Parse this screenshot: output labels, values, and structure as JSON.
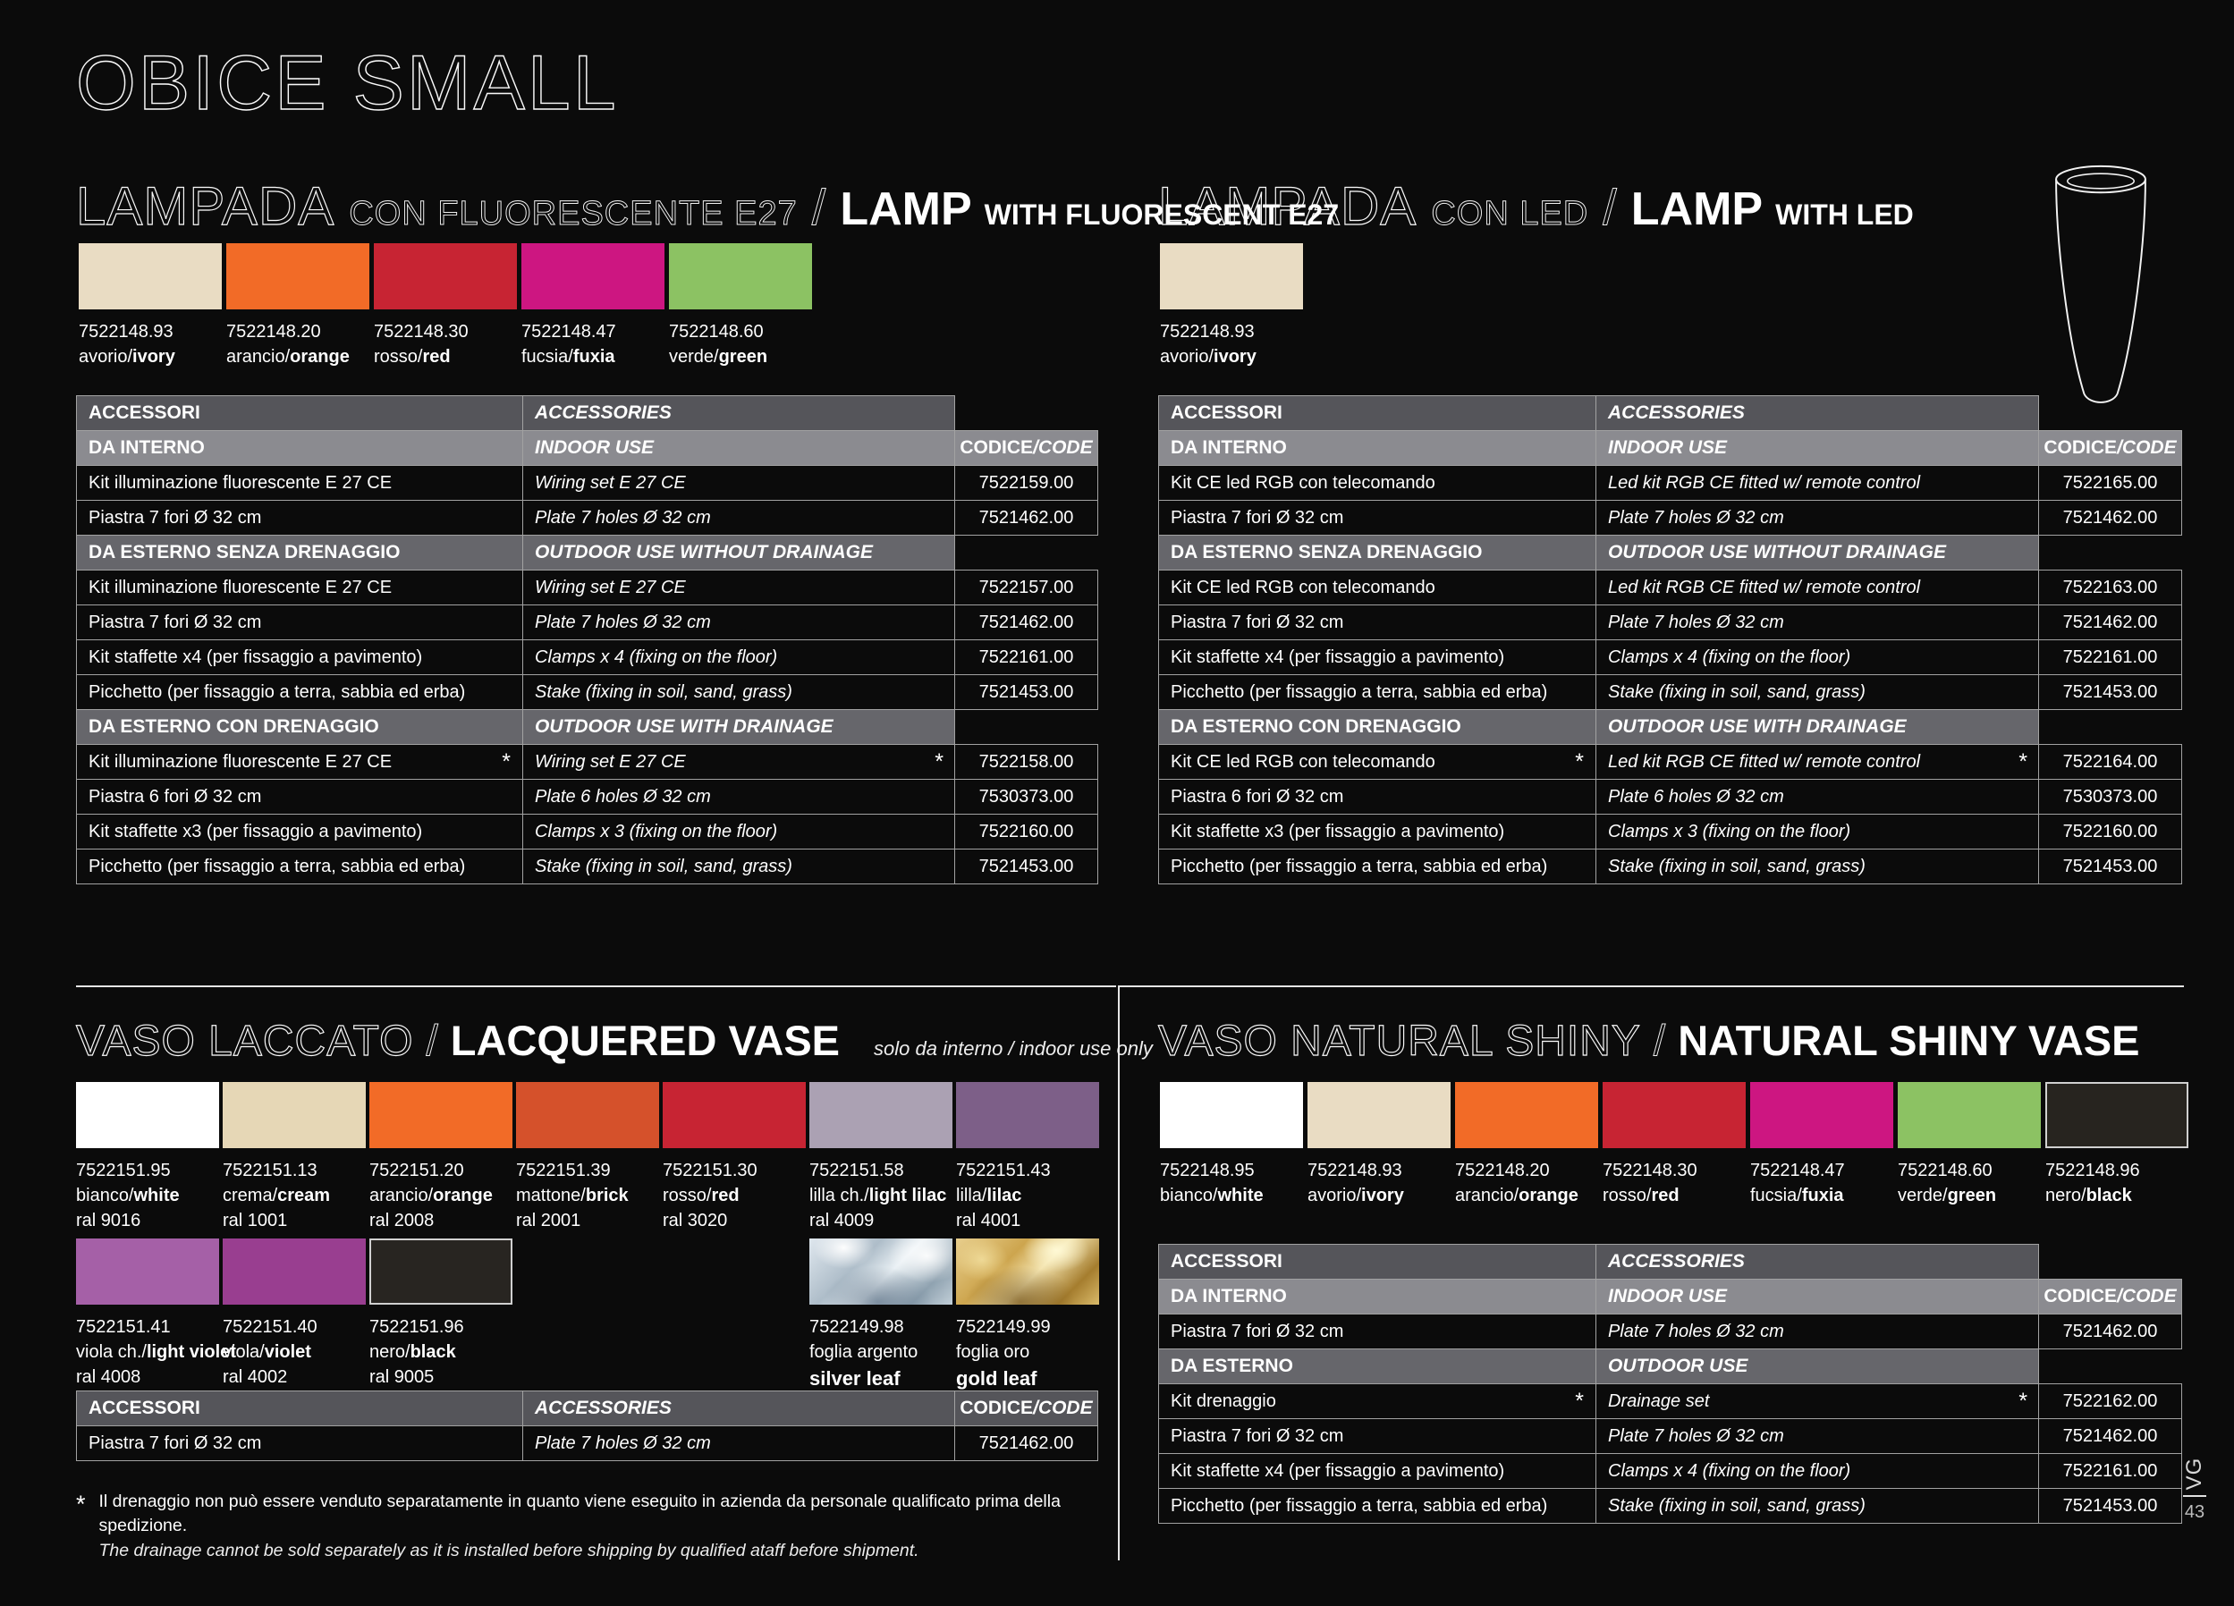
{
  "page": {
    "title": "OBICE SMALL"
  },
  "footer": {
    "brand": "VG",
    "page_number": "43"
  },
  "labels": {
    "codice": "CODICE",
    "code_slash": "/CODE"
  },
  "icons": {
    "product_drawing": "vase-outline-icon"
  },
  "footnote": {
    "symbol": "*",
    "it": "Il drenaggio non può essere venduto separatamente in quanto viene eseguito in azienda da personale qualificato prima della spedizione.",
    "en": "The drainage cannot be sold separately as it is installed before shipping by qualified ataff before shipment."
  },
  "sections": {
    "lamp_fluorescent": {
      "title_it": "LAMPADA",
      "subtitle_it": "CON FLUORESCENTE E27",
      "slash": "/",
      "title_en": "LAMP",
      "subtitle_en": "WITH FLUORESCENT E27",
      "swatches": [
        {
          "code": "7522148.93",
          "it": "avorio",
          "en": "ivory",
          "color": "#e9dcc3"
        },
        {
          "code": "7522148.20",
          "it": "arancio",
          "en": "orange",
          "color": "#f26b27"
        },
        {
          "code": "7522148.30",
          "it": "rosso",
          "en": "red",
          "color": "#c72433"
        },
        {
          "code": "7522148.47",
          "it": "fucsia",
          "en": "fuxia",
          "color": "#cd1681"
        },
        {
          "code": "7522148.60",
          "it": "verde",
          "en": "green",
          "color": "#8cc263"
        }
      ],
      "table": [
        {
          "type": "header",
          "it": "ACCESSORI",
          "en": "ACCESSORIES"
        },
        {
          "type": "subheader",
          "it": "DA INTERNO",
          "en": "INDOOR USE",
          "code_label": true
        },
        {
          "type": "item",
          "it": "Kit illuminazione fluorescente E 27 CE",
          "en": "Wiring set  E 27 CE",
          "code": "7522159.00"
        },
        {
          "type": "item",
          "it": "Piastra 7 fori Ø 32 cm",
          "en": "Plate 7 holes Ø 32 cm",
          "code": "7521462.00"
        },
        {
          "type": "section",
          "it": "DA ESTERNO SENZA DRENAGGIO",
          "en": "OUTDOOR USE WITHOUT DRAINAGE"
        },
        {
          "type": "item",
          "it": "Kit illuminazione fluorescente E 27 CE",
          "en": "Wiring set  E 27 CE",
          "code": "7522157.00"
        },
        {
          "type": "item",
          "it": "Piastra 7 fori Ø 32 cm",
          "en": "Plate 7 holes Ø 32 cm",
          "code": "7521462.00"
        },
        {
          "type": "item",
          "it": "Kit staffette x4 (per fissaggio a pavimento)",
          "en": "Clamps x 4 (fixing on the floor)",
          "code": "7522161.00"
        },
        {
          "type": "item",
          "it": "Picchetto (per fissaggio a terra, sabbia ed erba)",
          "en": "Stake (fixing in soil, sand, grass)",
          "code": "7521453.00"
        },
        {
          "type": "section",
          "it": "DA ESTERNO CON DRENAGGIO",
          "en": "OUTDOOR USE WITH DRAINAGE"
        },
        {
          "type": "item",
          "it": "Kit illuminazione fluorescente E 27 CE",
          "en": "Wiring set  E 27 CE",
          "code": "7522158.00",
          "star": true
        },
        {
          "type": "item",
          "it": "Piastra 6 fori Ø 32 cm",
          "en": "Plate 6 holes Ø 32 cm",
          "code": "7530373.00"
        },
        {
          "type": "item",
          "it": "Kit staffette x3 (per fissaggio a pavimento)",
          "en": "Clamps x 3 (fixing on the floor)",
          "code": "7522160.00"
        },
        {
          "type": "item",
          "it": "Picchetto (per fissaggio a terra, sabbia ed erba)",
          "en": "Stake (fixing in soil, sand, grass)",
          "code": "7521453.00"
        }
      ]
    },
    "lamp_led": {
      "title_it": "LAMPADA",
      "subtitle_it": "CON LED",
      "slash": "/",
      "title_en": "LAMP",
      "subtitle_en": "WITH LED",
      "swatches": [
        {
          "code": "7522148.93",
          "it": "avorio",
          "en": "ivory",
          "color": "#e9dcc3"
        }
      ],
      "table": [
        {
          "type": "header",
          "it": "ACCESSORI",
          "en": "ACCESSORIES"
        },
        {
          "type": "subheader",
          "it": "DA INTERNO",
          "en": "INDOOR USE",
          "code_label": true
        },
        {
          "type": "item",
          "it": "Kit CE led RGB con telecomando",
          "en": "Led kit RGB CE fitted w/ remote control",
          "code": "7522165.00"
        },
        {
          "type": "item",
          "it": "Piastra 7 fori Ø 32 cm",
          "en": "Plate 7 holes Ø 32 cm",
          "code": "7521462.00"
        },
        {
          "type": "section",
          "it": "DA ESTERNO SENZA DRENAGGIO",
          "en": "OUTDOOR USE WITHOUT DRAINAGE"
        },
        {
          "type": "item",
          "it": "Kit CE led RGB con telecomando",
          "en": "Led kit RGB CE fitted w/ remote control",
          "code": "7522163.00"
        },
        {
          "type": "item",
          "it": "Piastra 7 fori Ø 32 cm",
          "en": "Plate 7 holes Ø 32 cm",
          "code": "7521462.00"
        },
        {
          "type": "item",
          "it": "Kit staffette x4 (per fissaggio a pavimento)",
          "en": "Clamps x 4 (fixing on the floor)",
          "code": "7522161.00"
        },
        {
          "type": "item",
          "it": "Picchetto (per fissaggio a terra, sabbia ed erba)",
          "en": "Stake (fixing in soil, sand, grass)",
          "code": "7521453.00"
        },
        {
          "type": "section",
          "it": "DA ESTERNO CON DRENAGGIO",
          "en": "OUTDOOR USE WITH DRAINAGE"
        },
        {
          "type": "item",
          "it": "Kit CE led RGB con telecomando",
          "en": "Led kit RGB CE fitted w/ remote control",
          "code": "7522164.00",
          "star": true
        },
        {
          "type": "item",
          "it": "Piastra 6 fori Ø 32 cm",
          "en": "Plate 6 holes Ø 32 cm",
          "code": "7530373.00"
        },
        {
          "type": "item",
          "it": "Kit staffette x3 (per fissaggio a pavimento)",
          "en": "Clamps x 3 (fixing on the floor)",
          "code": "7522160.00"
        },
        {
          "type": "item",
          "it": "Picchetto (per fissaggio a terra, sabbia ed erba)",
          "en": "Stake (fixing in soil, sand, grass)",
          "code": "7521453.00"
        }
      ]
    },
    "lacquered_vase": {
      "title_it": "VASO LACCATO",
      "slash": "/",
      "title_en": "LACQUERED VASE",
      "note": "solo da interno / indoor use only",
      "swatches_row1": [
        {
          "code": "7522151.95",
          "it": "bianco",
          "en": "white",
          "ral": "ral 9016",
          "color": "#ffffff"
        },
        {
          "code": "7522151.13",
          "it": "crema",
          "en": "cream",
          "ral": "ral 1001",
          "color": "#e6d7b6"
        },
        {
          "code": "7522151.20",
          "it": "arancio",
          "en": "orange",
          "ral": "ral 2008",
          "color": "#f26b27"
        },
        {
          "code": "7522151.39",
          "it": "mattone",
          "en": "brick",
          "ral": "ral 2001",
          "color": "#d5512b"
        },
        {
          "code": "7522151.30",
          "it": "rosso",
          "en": "red",
          "ral": "ral 3020",
          "color": "#c72433"
        },
        {
          "code": "7522151.58",
          "it": "lilla ch.",
          "en": "light lilac",
          "ral": "ral 4009",
          "color": "#aba1b3"
        },
        {
          "code": "7522151.43",
          "it": "lilla",
          "en": "lilac",
          "ral": "ral 4001",
          "color": "#7d5f88"
        }
      ],
      "swatches_row2": [
        {
          "code": "7522151.41",
          "it": "viola ch.",
          "en": "light violet",
          "ral": "ral 4008",
          "color": "#a560a7"
        },
        {
          "code": "7522151.40",
          "it": "viola",
          "en": "violet",
          "ral": "ral 4002",
          "color": "#993e90"
        },
        {
          "code": "7522151.96",
          "it": "nero",
          "en": "black",
          "ral": "ral 9005",
          "color": "#282521",
          "bordered": true
        },
        {
          "spacer": true
        },
        {
          "spacer": true
        },
        {
          "code": "7522149.98",
          "it": "foglia argento",
          "en": "silver leaf",
          "texture": "silver",
          "stacked": true
        },
        {
          "code": "7522149.99",
          "it": "foglia oro",
          "en": "gold leaf",
          "texture": "gold",
          "stacked": true
        }
      ],
      "table": [
        {
          "type": "header3",
          "it": "ACCESSORI",
          "en": "ACCESSORIES",
          "code_label": true
        },
        {
          "type": "item",
          "it": "Piastra 7 fori Ø 32 cm",
          "en": "Plate 7 holes Ø 32 cm",
          "code": "7521462.00"
        }
      ]
    },
    "natural_shiny_vase": {
      "title_it": "VASO NATURAL SHINY",
      "slash": "/",
      "title_en": "NATURAL SHINY VASE",
      "swatches": [
        {
          "code": "7522148.95",
          "it": "bianco",
          "en": "white",
          "color": "#ffffff"
        },
        {
          "code": "7522148.93",
          "it": "avorio",
          "en": "ivory",
          "color": "#e9dcc3"
        },
        {
          "code": "7522148.20",
          "it": "arancio",
          "en": "orange",
          "color": "#f26b27"
        },
        {
          "code": "7522148.30",
          "it": "rosso",
          "en": "red",
          "color": "#c72433"
        },
        {
          "code": "7522148.47",
          "it": "fucsia",
          "en": "fuxia",
          "color": "#cd1681"
        },
        {
          "code": "7522148.60",
          "it": "verde",
          "en": "green",
          "color": "#8cc263"
        },
        {
          "code": "7522148.96",
          "it": "nero",
          "en": "black",
          "color": "#27241f",
          "bordered": true
        }
      ],
      "table": [
        {
          "type": "header",
          "it": "ACCESSORI",
          "en": "ACCESSORIES"
        },
        {
          "type": "subheader",
          "it": "DA INTERNO",
          "en": "INDOOR USE",
          "code_label": true
        },
        {
          "type": "item",
          "it": "Piastra 7 fori Ø 32 cm",
          "en": "Plate 7 holes Ø 32 cm",
          "code": "7521462.00"
        },
        {
          "type": "section",
          "it": "DA ESTERNO",
          "en": "OUTDOOR USE"
        },
        {
          "type": "item",
          "it": "Kit drenaggio",
          "en": "Drainage set",
          "code": "7522162.00",
          "star": true
        },
        {
          "type": "item",
          "it": "Piastra 7 fori Ø 32 cm",
          "en": "Plate 7 holes Ø 32 cm",
          "code": "7521462.00"
        },
        {
          "type": "item",
          "it": "Kit staffette x4 (per fissaggio a pavimento)",
          "en": "Clamps x 4 (fixing on the floor)",
          "code": "7522161.00"
        },
        {
          "type": "item",
          "it": "Picchetto (per fissaggio a terra, sabbia ed erba)",
          "en": "Stake (fixing in soil, sand, grass)",
          "code": "7521453.00"
        }
      ]
    }
  }
}
